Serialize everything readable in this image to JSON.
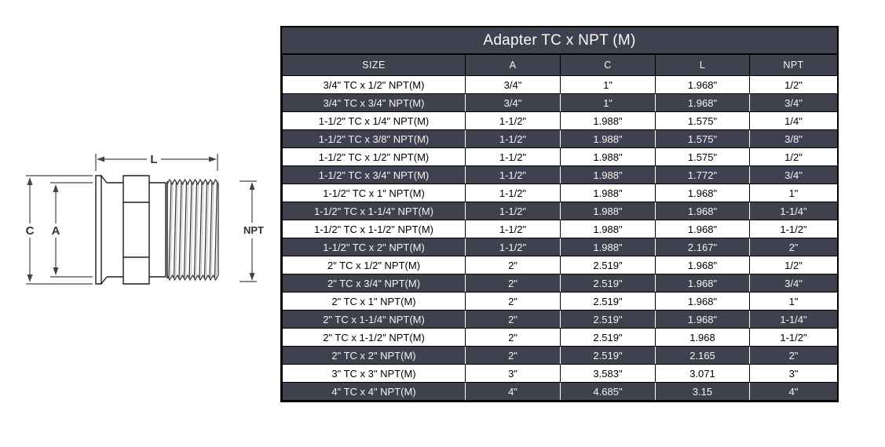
{
  "diagram": {
    "description": "Technical line drawing of TC x NPT male adapter fitting with dimension callouts",
    "labels": {
      "l": "L",
      "c": "C",
      "a": "A",
      "npt": "NPT"
    }
  },
  "table": {
    "title": "Adapter TC x NPT (M)",
    "columns": [
      "SIZE",
      "A",
      "C",
      "L",
      "NPT"
    ],
    "rows": [
      [
        "3/4\" TC x 1/2\" NPT(M)",
        "3/4\"",
        "1\"",
        "1.968\"",
        "1/2\""
      ],
      [
        "3/4\" TC x 3/4\" NPT(M)",
        "3/4\"",
        "1\"",
        "1.968\"",
        "3/4\""
      ],
      [
        "1-1/2\" TC x 1/4\" NPT(M)",
        "1-1/2\"",
        "1.988\"",
        "1.575\"",
        "1/4\""
      ],
      [
        "1-1/2\" TC x 3/8\" NPT(M)",
        "1-1/2\"",
        "1.988\"",
        "1.575\"",
        "3/8\""
      ],
      [
        "1-1/2\" TC x 1/2\" NPT(M)",
        "1-1/2\"",
        "1.988\"",
        "1.575\"",
        "1/2\""
      ],
      [
        "1-1/2\" TC x 3/4\" NPT(M)",
        "1-1/2\"",
        "1.988\"",
        "1.772\"",
        "3/4\""
      ],
      [
        "1-1/2\" TC x 1\" NPT(M)",
        "1-1/2\"",
        "1.988\"",
        "1.968\"",
        "1\""
      ],
      [
        "1-1/2\" TC x 1-1/4\" NPT(M)",
        "1-1/2\"",
        "1.988\"",
        "1.968\"",
        "1-1/4\""
      ],
      [
        "1-1/2\" TC x 1-1/2\" NPT(M)",
        "1-1/2\"",
        "1.988\"",
        "1.968\"",
        "1-1/2\""
      ],
      [
        "1-1/2\" TC x 2\" NPT(M)",
        "1-1/2\"",
        "1.988\"",
        "2.167\"",
        "2\""
      ],
      [
        "2\" TC x 1/2\" NPT(M)",
        "2\"",
        "2.519\"",
        "1.968\"",
        "1/2\""
      ],
      [
        "2\" TC x 3/4\" NPT(M)",
        "2\"",
        "2.519\"",
        "1.968\"",
        "3/4\""
      ],
      [
        "2\" TC x 1\" NPT(M)",
        "2\"",
        "2.519\"",
        "1.968\"",
        "1\""
      ],
      [
        "2\" TC x 1-1/4\" NPT(M)",
        "2\"",
        "2.519\"",
        "1.968\"",
        "1-1/4\""
      ],
      [
        "2\" TC x 1-1/2\" NPT(M)",
        "2\"",
        "2.519\"",
        "1.968",
        "1-1/2\""
      ],
      [
        "2\" TC x 2\" NPT(M)",
        "2\"",
        "2.519\"",
        "2.165",
        "2\""
      ],
      [
        "3\" TC x 3\" NPT(M)",
        "3\"",
        "3.583\"",
        "3.071",
        "3\""
      ],
      [
        "4\" TC x 4\" NPT(M)",
        "4\"",
        "4.685\"",
        "3.15",
        "4\""
      ]
    ]
  },
  "colors": {
    "header_bg": "#3f414e",
    "dark_row_bg": "#3f414e",
    "light_row_bg": "#ffffff",
    "dark_row_text": "#f5f5f5",
    "light_row_text": "#000000",
    "border": "#000000",
    "drawing_line": "#1c1c1c"
  }
}
